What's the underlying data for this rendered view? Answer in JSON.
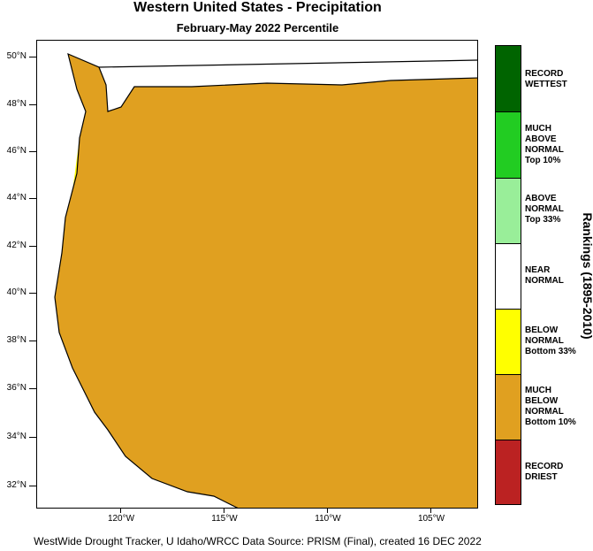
{
  "title": "Western United States - Precipitation",
  "subtitle": "February-May 2022 Percentile",
  "footer": "WestWide Drought Tracker, U Idaho/WRCC Data Source: PRISM (Final), created 16 DEC 2022",
  "latitude_labels": [
    "50°N",
    "48°N",
    "46°N",
    "44°N",
    "42°N",
    "40°N",
    "38°N",
    "36°N",
    "34°N",
    "32°N"
  ],
  "longitude_labels": [
    "120°W",
    "115°W",
    "110°W",
    "105°W"
  ],
  "legend": {
    "title": "Rankings (1895-2010)",
    "categories": [
      {
        "label": "RECORD\nWETTEST",
        "color": "#006400"
      },
      {
        "label": "MUCH\nABOVE\nNORMAL\nTop 10%",
        "color": "#22cc22"
      },
      {
        "label": "ABOVE\nNORMAL\nTop 33%",
        "color": "#99ee99"
      },
      {
        "label": "NEAR\nNORMAL",
        "color": "#ffffff"
      },
      {
        "label": "BELOW\nNORMAL\nBottom 33%",
        "color": "#ffff00"
      },
      {
        "label": "MUCH\nBELOW\nNORMAL\nBottom 10%",
        "color": "#e0a020"
      },
      {
        "label": "RECORD\nDRIEST",
        "color": "#bb2222"
      }
    ]
  },
  "map_colors": {
    "ocean": "#ffffff",
    "much_below": "#e0a020",
    "below": "#ffff00",
    "near": "#ffffff",
    "above": "#99ee99",
    "much_above": "#22cc22",
    "record_wet": "#006400",
    "record_dry": "#bb2222",
    "border": "#000000"
  }
}
